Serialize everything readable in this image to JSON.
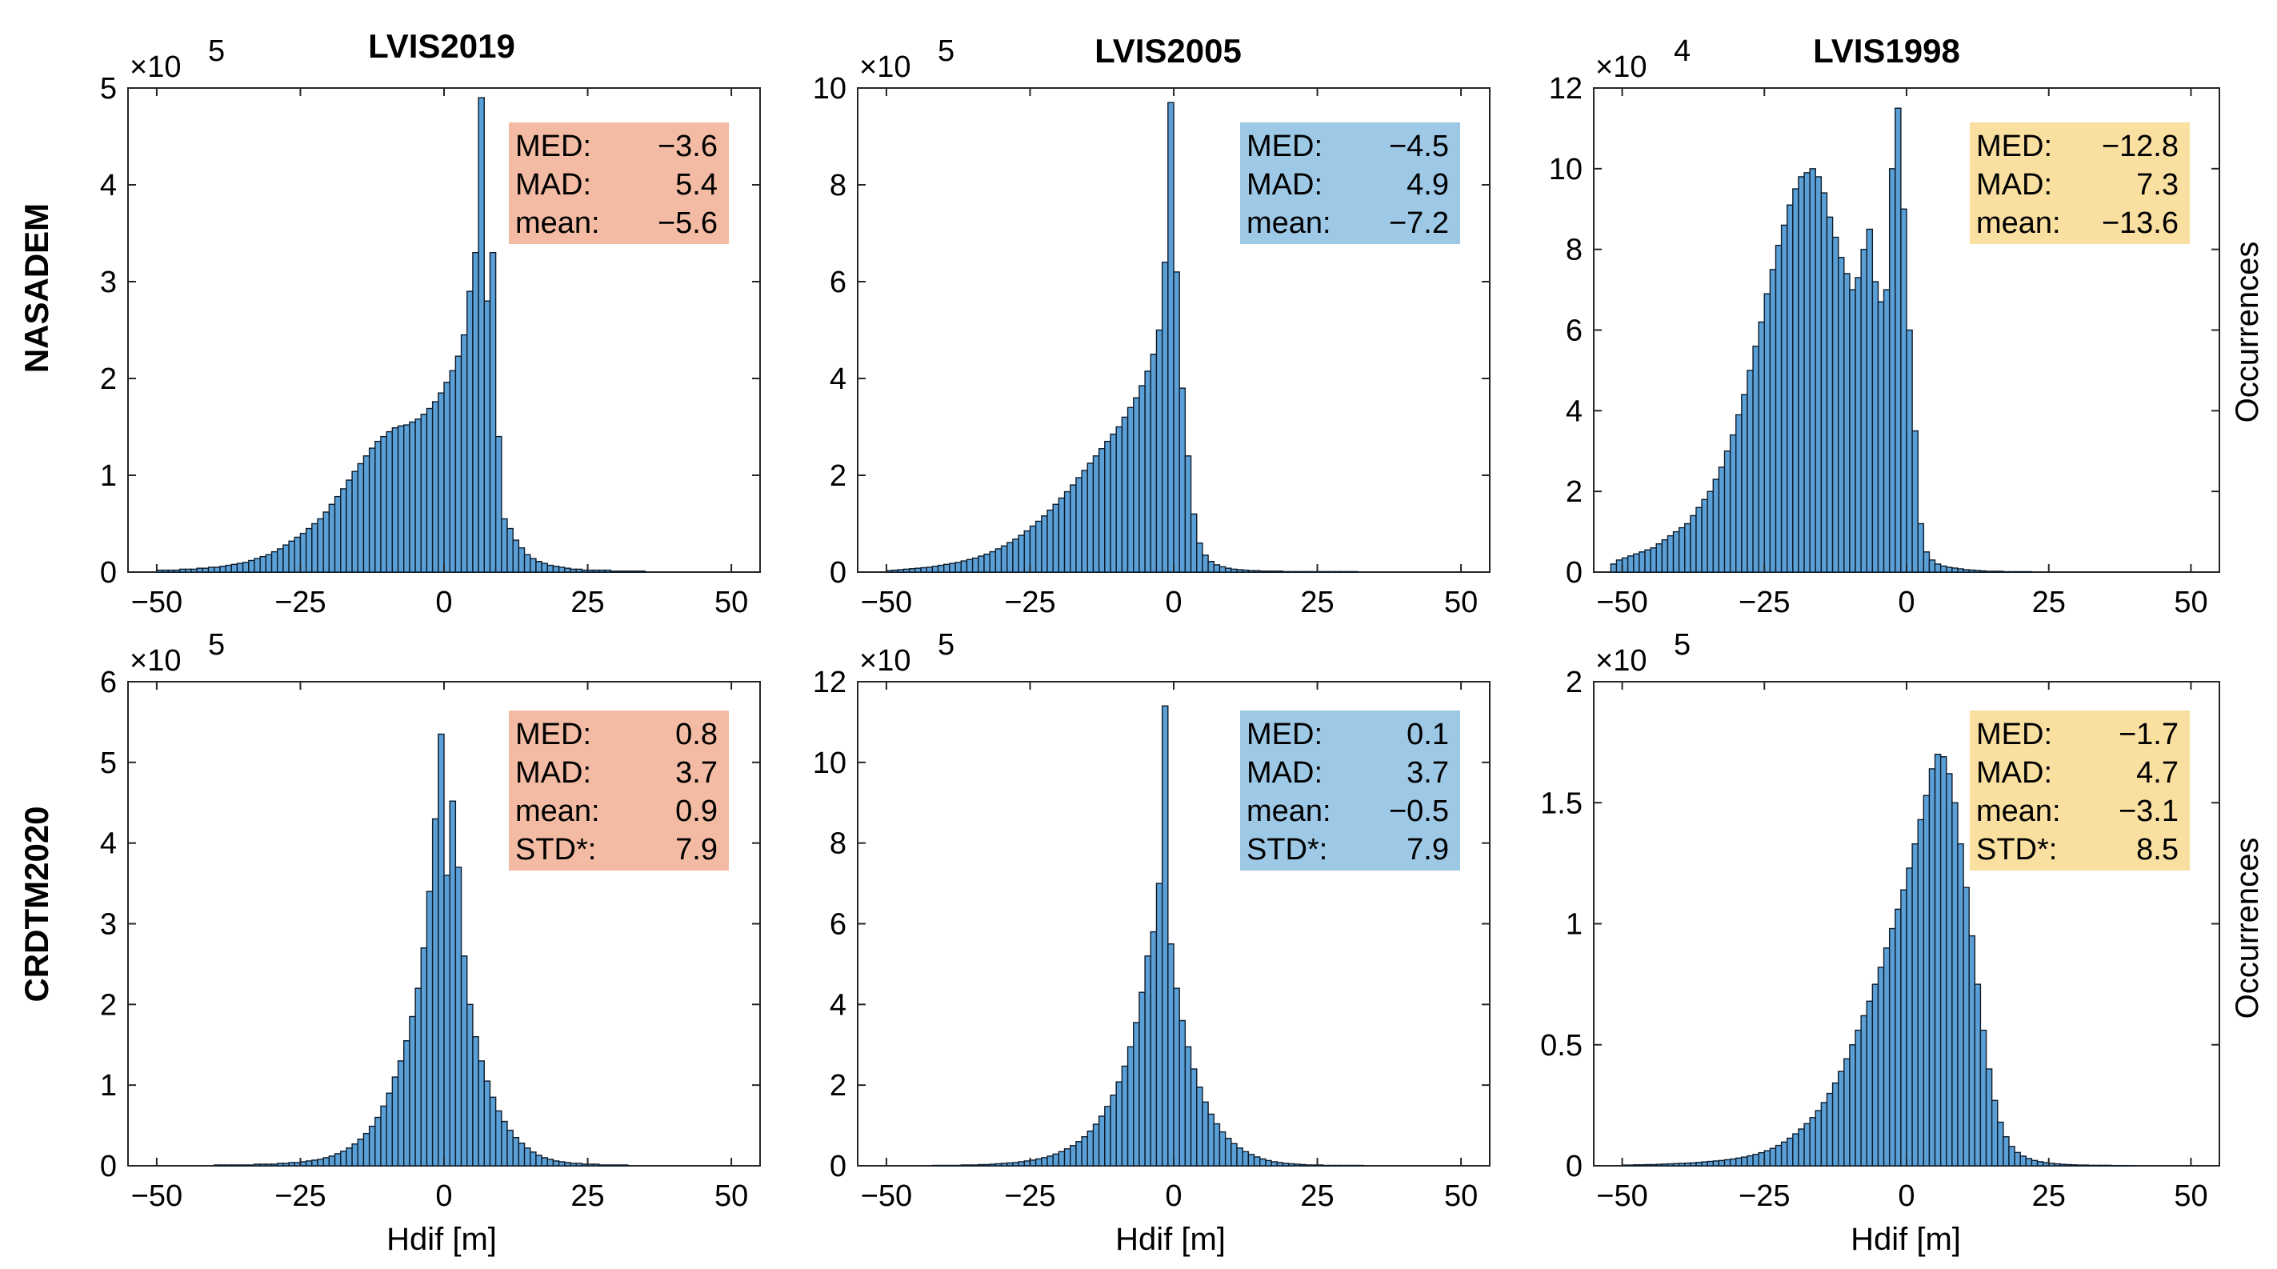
{
  "figure": {
    "column_titles": [
      "LVIS2019",
      "LVIS2005",
      "LVIS1998"
    ],
    "row_titles": [
      "NASADEM",
      "CRDTM2020"
    ],
    "xlabel": "Hdif [m]",
    "ylabel": "Occurrences"
  },
  "colors": {
    "bar_fill": "#5a9fd6",
    "bar_edge": "#0d1b2a",
    "box_lvis2019": "#f3bba3",
    "box_lvis2005": "#9dc8e6",
    "box_lvis1998": "#f9dfa0"
  },
  "chart_data": [
    {
      "id": "p11",
      "type": "bar",
      "row": "NASADEM",
      "column": "LVIS2019",
      "xlim": [
        -55,
        55
      ],
      "xticks": [
        -50,
        -25,
        0,
        25,
        50
      ],
      "ylim": [
        0,
        5
      ],
      "yticks": [
        0,
        1,
        2,
        3,
        4,
        5
      ],
      "ytick_labels": [
        "0",
        "1",
        "2",
        "3",
        "4",
        "5"
      ],
      "y_multiplier": "×10",
      "y_exponent": "5",
      "bin_start": -50,
      "bin_width": 1,
      "values": [
        0.02,
        0.02,
        0.02,
        0.02,
        0.03,
        0.03,
        0.03,
        0.04,
        0.04,
        0.05,
        0.05,
        0.06,
        0.07,
        0.08,
        0.09,
        0.1,
        0.12,
        0.14,
        0.16,
        0.18,
        0.21,
        0.24,
        0.28,
        0.32,
        0.36,
        0.4,
        0.45,
        0.5,
        0.55,
        0.62,
        0.7,
        0.78,
        0.86,
        0.95,
        1.04,
        1.12,
        1.2,
        1.28,
        1.35,
        1.4,
        1.45,
        1.49,
        1.51,
        1.52,
        1.55,
        1.58,
        1.63,
        1.69,
        1.76,
        1.85,
        1.96,
        2.08,
        2.23,
        2.45,
        2.9,
        3.3,
        4.9,
        2.8,
        3.3,
        1.4,
        0.55,
        0.45,
        0.33,
        0.25,
        0.18,
        0.14,
        0.11,
        0.09,
        0.07,
        0.06,
        0.05,
        0.04,
        0.03,
        0.03,
        0.02,
        0.02,
        0.02,
        0.02,
        0.02,
        0.01,
        0.01,
        0.01,
        0.01,
        0.01,
        0.01
      ],
      "stats": [
        {
          "label": "MED:",
          "value": "−3.6"
        },
        {
          "label": "MAD:",
          "value": "5.4"
        },
        {
          "label": "mean:",
          "value": "−5.6"
        }
      ]
    },
    {
      "id": "p12",
      "type": "bar",
      "row": "NASADEM",
      "column": "LVIS2005",
      "xlim": [
        -55,
        55
      ],
      "xticks": [
        -50,
        -25,
        0,
        25,
        50
      ],
      "ylim": [
        0,
        10
      ],
      "yticks": [
        0,
        2,
        4,
        6,
        8,
        10
      ],
      "ytick_labels": [
        "0",
        "2",
        "4",
        "6",
        "8",
        "10"
      ],
      "y_multiplier": "×10",
      "y_exponent": "5",
      "bin_start": -50,
      "bin_width": 1,
      "values": [
        0.03,
        0.04,
        0.05,
        0.06,
        0.07,
        0.08,
        0.09,
        0.1,
        0.12,
        0.14,
        0.16,
        0.18,
        0.2,
        0.23,
        0.26,
        0.29,
        0.33,
        0.37,
        0.42,
        0.48,
        0.54,
        0.61,
        0.68,
        0.76,
        0.85,
        0.95,
        1.05,
        1.16,
        1.28,
        1.4,
        1.53,
        1.66,
        1.8,
        1.95,
        2.1,
        2.25,
        2.4,
        2.55,
        2.7,
        2.85,
        3.0,
        3.2,
        3.4,
        3.6,
        3.85,
        4.15,
        4.5,
        5.0,
        6.4,
        9.7,
        6.2,
        3.8,
        2.4,
        1.2,
        0.6,
        0.35,
        0.22,
        0.15,
        0.11,
        0.08,
        0.06,
        0.05,
        0.04,
        0.03,
        0.03,
        0.02,
        0.02,
        0.02,
        0.02,
        0.01,
        0.01,
        0.01,
        0.01,
        0.01,
        0.01,
        0.01,
        0.01,
        0.01,
        0.01,
        0.01,
        0.01,
        0.01
      ],
      "stats": [
        {
          "label": "MED:",
          "value": "−4.5"
        },
        {
          "label": "MAD:",
          "value": "4.9"
        },
        {
          "label": "mean:",
          "value": "−7.2"
        }
      ]
    },
    {
      "id": "p13",
      "type": "bar",
      "row": "NASADEM",
      "column": "LVIS1998",
      "xlim": [
        -55,
        55
      ],
      "xticks": [
        -50,
        -25,
        0,
        25,
        50
      ],
      "ylim": [
        0,
        12
      ],
      "yticks": [
        0,
        2,
        4,
        6,
        8,
        10,
        12
      ],
      "ytick_labels": [
        "0",
        "2",
        "4",
        "6",
        "8",
        "10",
        "12"
      ],
      "y_multiplier": "×10",
      "y_exponent": "4",
      "bin_start": -52,
      "bin_width": 1,
      "values": [
        0.2,
        0.3,
        0.35,
        0.4,
        0.45,
        0.5,
        0.55,
        0.6,
        0.7,
        0.8,
        0.9,
        1.0,
        1.1,
        1.2,
        1.4,
        1.6,
        1.8,
        2.0,
        2.3,
        2.6,
        3.0,
        3.4,
        3.9,
        4.4,
        5.0,
        5.6,
        6.2,
        6.9,
        7.5,
        8.1,
        8.6,
        9.1,
        9.5,
        9.8,
        9.9,
        10.0,
        9.8,
        9.4,
        8.8,
        8.3,
        7.8,
        7.4,
        7.0,
        7.3,
        8.0,
        8.5,
        7.2,
        6.7,
        7.0,
        10.0,
        11.5,
        9.0,
        6.0,
        3.5,
        1.2,
        0.5,
        0.3,
        0.2,
        0.15,
        0.12,
        0.1,
        0.08,
        0.06,
        0.05,
        0.04,
        0.03,
        0.02,
        0.02,
        0.02,
        0.01,
        0.01,
        0.01,
        0.01,
        0.01
      ],
      "stats": [
        {
          "label": "MED:",
          "value": "−12.8"
        },
        {
          "label": "MAD:",
          "value": "7.3"
        },
        {
          "label": "mean:",
          "value": "−13.6"
        }
      ]
    },
    {
      "id": "p21",
      "type": "bar",
      "row": "CRDTM2020",
      "column": "LVIS2019",
      "xlim": [
        -55,
        55
      ],
      "xticks": [
        -50,
        -25,
        0,
        25,
        50
      ],
      "ylim": [
        0,
        6
      ],
      "yticks": [
        0,
        1,
        2,
        3,
        4,
        5,
        6
      ],
      "ytick_labels": [
        "0",
        "1",
        "2",
        "3",
        "4",
        "5",
        "6"
      ],
      "y_multiplier": "×10",
      "y_exponent": "5",
      "bin_start": -40,
      "bin_width": 1,
      "values": [
        0.01,
        0.01,
        0.01,
        0.01,
        0.01,
        0.01,
        0.01,
        0.02,
        0.02,
        0.02,
        0.02,
        0.03,
        0.03,
        0.04,
        0.04,
        0.05,
        0.06,
        0.07,
        0.08,
        0.1,
        0.12,
        0.15,
        0.18,
        0.22,
        0.27,
        0.33,
        0.4,
        0.49,
        0.6,
        0.74,
        0.9,
        1.1,
        1.3,
        1.55,
        1.85,
        2.2,
        2.7,
        3.4,
        4.3,
        5.35,
        3.6,
        4.52,
        3.7,
        2.6,
        2.0,
        1.6,
        1.3,
        1.05,
        0.85,
        0.68,
        0.55,
        0.44,
        0.35,
        0.28,
        0.22,
        0.17,
        0.13,
        0.1,
        0.08,
        0.06,
        0.05,
        0.04,
        0.03,
        0.03,
        0.02,
        0.02,
        0.02,
        0.01,
        0.01,
        0.01,
        0.01,
        0.01
      ],
      "stats": [
        {
          "label": "MED:",
          "value": "0.8"
        },
        {
          "label": "MAD:",
          "value": "3.7"
        },
        {
          "label": "mean:",
          "value": "0.9"
        },
        {
          "label": "STD*:",
          "value": "7.9"
        }
      ]
    },
    {
      "id": "p22",
      "type": "bar",
      "row": "CRDTM2020",
      "column": "LVIS2005",
      "xlim": [
        -55,
        55
      ],
      "xticks": [
        -50,
        -25,
        0,
        25,
        50
      ],
      "ylim": [
        0,
        12
      ],
      "yticks": [
        0,
        2,
        4,
        6,
        8,
        10,
        12
      ],
      "ytick_labels": [
        "0",
        "2",
        "4",
        "6",
        "8",
        "10",
        "12"
      ],
      "y_multiplier": "×10",
      "y_exponent": "5",
      "bin_start": -42,
      "bin_width": 1,
      "values": [
        0.01,
        0.01,
        0.01,
        0.01,
        0.01,
        0.02,
        0.02,
        0.02,
        0.03,
        0.03,
        0.04,
        0.05,
        0.06,
        0.07,
        0.08,
        0.1,
        0.12,
        0.14,
        0.17,
        0.2,
        0.24,
        0.29,
        0.35,
        0.42,
        0.5,
        0.6,
        0.72,
        0.86,
        1.03,
        1.23,
        1.47,
        1.75,
        2.08,
        2.47,
        2.95,
        3.55,
        4.3,
        5.2,
        5.8,
        7.0,
        11.4,
        5.5,
        4.4,
        3.6,
        2.95,
        2.4,
        1.95,
        1.58,
        1.28,
        1.04,
        0.84,
        0.68,
        0.55,
        0.44,
        0.35,
        0.28,
        0.22,
        0.17,
        0.13,
        0.1,
        0.08,
        0.06,
        0.05,
        0.04,
        0.03,
        0.02,
        0.02,
        0.02,
        0.01,
        0.01,
        0.01,
        0.01,
        0.01,
        0.01,
        0.01
      ],
      "stats": [
        {
          "label": "MED:",
          "value": "0.1"
        },
        {
          "label": "MAD:",
          "value": "3.7"
        },
        {
          "label": "mean:",
          "value": "−0.5"
        },
        {
          "label": "STD*:",
          "value": "7.9"
        }
      ]
    },
    {
      "id": "p23",
      "type": "bar",
      "row": "CRDTM2020",
      "column": "LVIS1998",
      "xlim": [
        -55,
        55
      ],
      "xticks": [
        -50,
        -25,
        0,
        25,
        50
      ],
      "ylim": [
        0,
        2
      ],
      "yticks": [
        0,
        0.5,
        1,
        1.5,
        2
      ],
      "ytick_labels": [
        "0",
        "0.5",
        "1",
        "1.5",
        "2"
      ],
      "y_multiplier": "×10",
      "y_exponent": "5",
      "bin_start": -50,
      "bin_width": 1,
      "values": [
        0.003,
        0.003,
        0.004,
        0.004,
        0.005,
        0.005,
        0.006,
        0.007,
        0.008,
        0.009,
        0.01,
        0.011,
        0.012,
        0.014,
        0.016,
        0.018,
        0.02,
        0.022,
        0.025,
        0.028,
        0.032,
        0.036,
        0.041,
        0.047,
        0.054,
        0.062,
        0.072,
        0.084,
        0.098,
        0.114,
        0.132,
        0.152,
        0.174,
        0.199,
        0.228,
        0.261,
        0.299,
        0.342,
        0.39,
        0.442,
        0.5,
        0.56,
        0.62,
        0.68,
        0.75,
        0.82,
        0.9,
        0.98,
        1.06,
        1.14,
        1.23,
        1.33,
        1.43,
        1.53,
        1.64,
        1.7,
        1.69,
        1.62,
        1.5,
        1.33,
        1.15,
        0.95,
        0.75,
        0.56,
        0.4,
        0.27,
        0.18,
        0.12,
        0.08,
        0.055,
        0.04,
        0.03,
        0.022,
        0.017,
        0.013,
        0.01,
        0.008,
        0.006,
        0.005,
        0.004,
        0.003,
        0.003,
        0.002,
        0.002,
        0.002,
        0.002,
        0.001,
        0.001,
        0.001,
        0.001
      ],
      "stats": [
        {
          "label": "MED:",
          "value": "−1.7"
        },
        {
          "label": "MAD:",
          "value": "4.7"
        },
        {
          "label": "mean:",
          "value": "−3.1"
        },
        {
          "label": "STD*:",
          "value": "8.5"
        }
      ]
    }
  ]
}
